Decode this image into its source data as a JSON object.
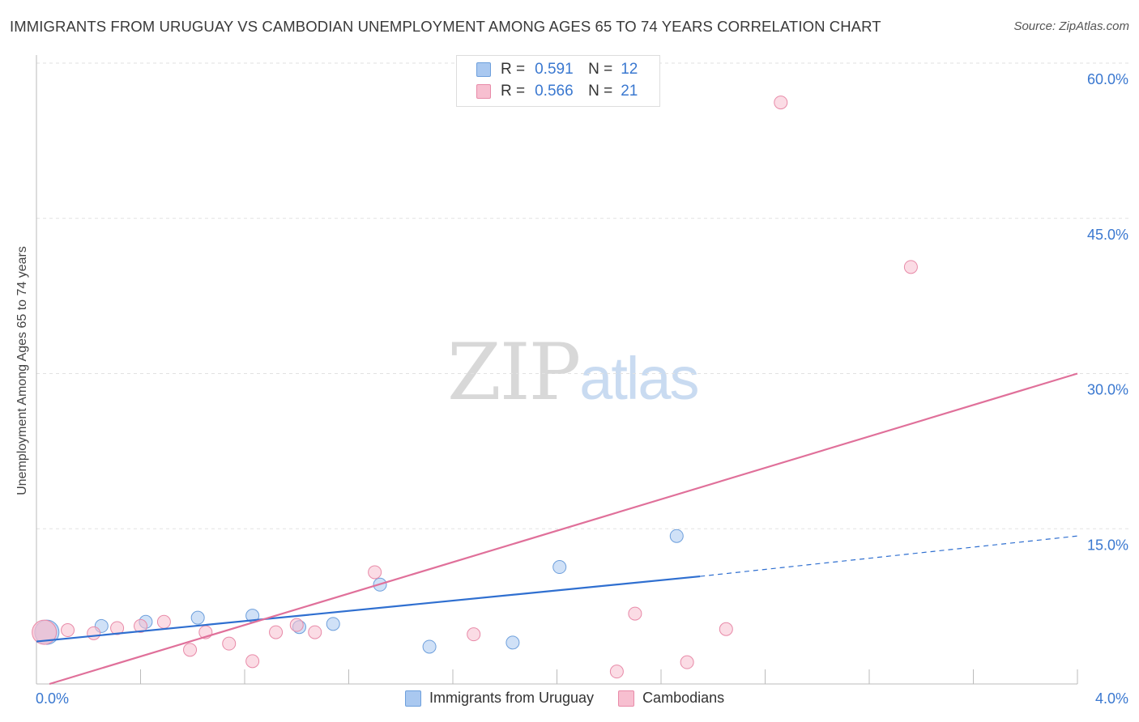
{
  "title": "IMMIGRANTS FROM URUGUAY VS CAMBODIAN UNEMPLOYMENT AMONG AGES 65 TO 74 YEARS CORRELATION CHART",
  "source": "Source: ZipAtlas.com",
  "watermark": {
    "zip": "ZIP",
    "atlas": "atlas"
  },
  "legend": {
    "rows": [
      {
        "r_label": "R =",
        "r_value": "0.591",
        "n_label": "N =",
        "n_value": "12",
        "color": "#a9c8f0",
        "border": "#6d9fdc"
      },
      {
        "r_label": "R =",
        "r_value": "0.566",
        "n_label": "N =",
        "n_value": "21",
        "color": "#f7bfd0",
        "border": "#e88aa8"
      }
    ]
  },
  "bottom_legend": [
    {
      "label": "Immigrants from Uruguay",
      "color": "#a9c8f0",
      "border": "#6d9fdc"
    },
    {
      "label": "Cambodians",
      "color": "#f7bfd0",
      "border": "#e88aa8"
    }
  ],
  "chart_data": {
    "type": "scatter",
    "title": "IMMIGRANTS FROM URUGUAY VS CAMBODIAN UNEMPLOYMENT AMONG AGES 65 TO 74 YEARS CORRELATION CHART",
    "xlabel": "",
    "ylabel": "Unemployment Among Ages 65 to 74 years",
    "xlim": [
      0,
      4
    ],
    "ylim": [
      0,
      60
    ],
    "x_tick_labels": [
      "0.0%",
      "4.0%"
    ],
    "y_ticks": [
      15,
      30,
      45,
      60
    ],
    "y_tick_labels": [
      "15.0%",
      "30.0%",
      "45.0%",
      "60.0%"
    ],
    "series": [
      {
        "name": "Immigrants from Uruguay",
        "color": "#6d9fdc",
        "fill": "#a9c8f0",
        "points": [
          {
            "x": 0.04,
            "y": 5.0,
            "large": true
          },
          {
            "x": 0.25,
            "y": 5.6
          },
          {
            "x": 0.42,
            "y": 6.0
          },
          {
            "x": 0.62,
            "y": 6.4
          },
          {
            "x": 0.83,
            "y": 6.6
          },
          {
            "x": 1.01,
            "y": 5.5
          },
          {
            "x": 1.14,
            "y": 5.8
          },
          {
            "x": 1.32,
            "y": 9.6
          },
          {
            "x": 1.51,
            "y": 3.6
          },
          {
            "x": 1.83,
            "y": 4.0
          },
          {
            "x": 2.01,
            "y": 11.3
          },
          {
            "x": 2.46,
            "y": 14.3
          }
        ],
        "trend": {
          "x0": 0.0,
          "y0": 4.1,
          "x1": 2.55,
          "y1": 10.4,
          "dash_x1": 4.0,
          "dash_y1": 14.3,
          "color": "#2f6fd0"
        }
      },
      {
        "name": "Cambodians",
        "color": "#e88aa8",
        "fill": "#f7bfd0",
        "points": [
          {
            "x": 0.03,
            "y": 5.0,
            "large": true
          },
          {
            "x": 0.12,
            "y": 5.2
          },
          {
            "x": 0.22,
            "y": 4.9
          },
          {
            "x": 0.31,
            "y": 5.4
          },
          {
            "x": 0.4,
            "y": 5.6
          },
          {
            "x": 0.49,
            "y": 6.0
          },
          {
            "x": 0.59,
            "y": 3.3
          },
          {
            "x": 0.65,
            "y": 5.0
          },
          {
            "x": 0.74,
            "y": 3.9
          },
          {
            "x": 0.83,
            "y": 2.2
          },
          {
            "x": 0.92,
            "y": 5.0
          },
          {
            "x": 1.0,
            "y": 5.7
          },
          {
            "x": 1.07,
            "y": 5.0
          },
          {
            "x": 1.3,
            "y": 10.8
          },
          {
            "x": 1.68,
            "y": 4.8
          },
          {
            "x": 2.23,
            "y": 1.2
          },
          {
            "x": 2.3,
            "y": 6.8
          },
          {
            "x": 2.5,
            "y": 2.1
          },
          {
            "x": 2.65,
            "y": 5.3
          },
          {
            "x": 2.86,
            "y": 56.2
          },
          {
            "x": 3.36,
            "y": 40.3
          }
        ],
        "trend": {
          "x0": 0.05,
          "y0": 0.0,
          "x1": 4.0,
          "y1": 30.0,
          "color": "#e0709a"
        }
      }
    ]
  }
}
